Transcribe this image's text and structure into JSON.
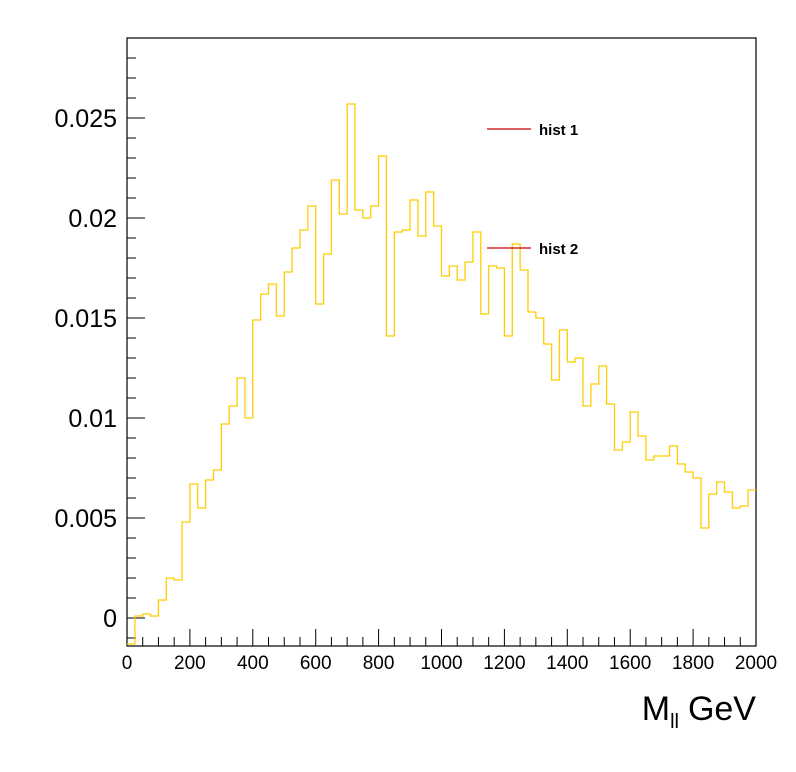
{
  "chart_data": {
    "type": "histogram",
    "xlabel_main": "M",
    "xlabel_sub": "ll",
    "xlabel_unit": "GeV",
    "xlim": [
      0,
      2000
    ],
    "ylim": [
      -0.0014,
      0.029
    ],
    "x_ticks": [
      0,
      200,
      400,
      600,
      800,
      1000,
      1200,
      1400,
      1600,
      1800,
      2000
    ],
    "x_tick_labels": [
      "0",
      "200",
      "400",
      "600",
      "800",
      "1000",
      "1200",
      "1400",
      "1600",
      "1800",
      "2000"
    ],
    "y_ticks": [
      0,
      0.005,
      0.01,
      0.015,
      0.02,
      0.025
    ],
    "y_tick_labels": [
      "0",
      "0.005",
      "0.01",
      "0.015",
      "0.02",
      "0.025"
    ],
    "bin_width": 25,
    "bin_edges_start": 0,
    "series": [
      {
        "color": "#ffcc00",
        "values": [
          -0.0013,
          0.0001,
          0.0002,
          0.0001,
          0.0009,
          0.002,
          0.0019,
          0.0048,
          0.0067,
          0.0055,
          0.0069,
          0.0074,
          0.0097,
          0.0106,
          0.012,
          0.01,
          0.0149,
          0.0162,
          0.0167,
          0.0151,
          0.0173,
          0.0185,
          0.0194,
          0.0206,
          0.0157,
          0.0182,
          0.0219,
          0.0202,
          0.0257,
          0.0204,
          0.02,
          0.0206,
          0.0231,
          0.0141,
          0.0193,
          0.0194,
          0.0209,
          0.0191,
          0.0213,
          0.0196,
          0.0171,
          0.0176,
          0.0169,
          0.0178,
          0.0193,
          0.0152,
          0.0176,
          0.0175,
          0.0141,
          0.0187,
          0.0174,
          0.0153,
          0.015,
          0.0137,
          0.0119,
          0.0144,
          0.0128,
          0.013,
          0.0106,
          0.0117,
          0.0126,
          0.0107,
          0.0084,
          0.0088,
          0.0103,
          0.0091,
          0.0079,
          0.0081,
          0.0081,
          0.0086,
          0.0077,
          0.0073,
          0.007,
          0.0045,
          0.0062,
          0.0068,
          0.0063,
          0.0055,
          0.0056,
          0.0064
        ]
      }
    ],
    "legend": [
      {
        "label": "hist 1",
        "color": "#cc0000"
      },
      {
        "label": "hist 2",
        "color": "#cc0000"
      }
    ]
  }
}
